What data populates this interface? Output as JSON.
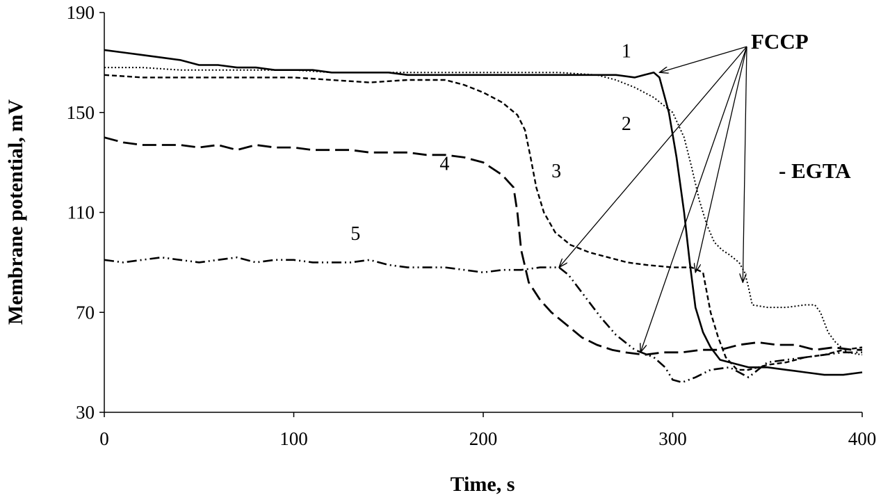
{
  "chart_data": {
    "type": "line",
    "xlabel": "Time, s",
    "ylabel": "Membrane potential, mV",
    "xlim": [
      0,
      400
    ],
    "ylim": [
      30,
      190
    ],
    "xticks": [
      0,
      100,
      200,
      300,
      400
    ],
    "yticks": [
      30,
      70,
      110,
      150,
      190
    ],
    "grid": false,
    "annotations": {
      "fccp": "FCCP",
      "egta": "- EGTA",
      "fccp_targets": [
        {
          "x": 293,
          "y": 166
        },
        {
          "x": 240,
          "y": 88
        },
        {
          "x": 283,
          "y": 54
        },
        {
          "x": 312,
          "y": 86
        },
        {
          "x": 337,
          "y": 82
        }
      ]
    },
    "series": [
      {
        "label": "1",
        "label_at": {
          "x": 273,
          "y": 172
        },
        "style": "solid",
        "points": [
          [
            0,
            175
          ],
          [
            10,
            174
          ],
          [
            20,
            173
          ],
          [
            30,
            172
          ],
          [
            40,
            171
          ],
          [
            50,
            169
          ],
          [
            60,
            169
          ],
          [
            70,
            168
          ],
          [
            80,
            168
          ],
          [
            90,
            167
          ],
          [
            100,
            167
          ],
          [
            110,
            167
          ],
          [
            120,
            166
          ],
          [
            130,
            166
          ],
          [
            140,
            166
          ],
          [
            150,
            166
          ],
          [
            160,
            165
          ],
          [
            170,
            165
          ],
          [
            180,
            165
          ],
          [
            190,
            165
          ],
          [
            200,
            165
          ],
          [
            210,
            165
          ],
          [
            220,
            165
          ],
          [
            230,
            165
          ],
          [
            240,
            165
          ],
          [
            250,
            165
          ],
          [
            260,
            165
          ],
          [
            270,
            165
          ],
          [
            280,
            164
          ],
          [
            285,
            165
          ],
          [
            290,
            166
          ],
          [
            293,
            164
          ],
          [
            298,
            150
          ],
          [
            302,
            132
          ],
          [
            306,
            110
          ],
          [
            309,
            90
          ],
          [
            312,
            72
          ],
          [
            316,
            62
          ],
          [
            320,
            56
          ],
          [
            325,
            51
          ],
          [
            330,
            50
          ],
          [
            340,
            48
          ],
          [
            350,
            48
          ],
          [
            360,
            47
          ],
          [
            370,
            46
          ],
          [
            380,
            45
          ],
          [
            390,
            45
          ],
          [
            400,
            46
          ]
        ]
      },
      {
        "label": "2",
        "label_at": {
          "x": 273,
          "y": 143
        },
        "style": "dotted",
        "points": [
          [
            0,
            168
          ],
          [
            20,
            168
          ],
          [
            40,
            167
          ],
          [
            60,
            167
          ],
          [
            80,
            167
          ],
          [
            100,
            167
          ],
          [
            120,
            166
          ],
          [
            140,
            166
          ],
          [
            160,
            166
          ],
          [
            180,
            166
          ],
          [
            200,
            166
          ],
          [
            220,
            166
          ],
          [
            240,
            166
          ],
          [
            260,
            165
          ],
          [
            270,
            163
          ],
          [
            280,
            160
          ],
          [
            290,
            156
          ],
          [
            300,
            150
          ],
          [
            306,
            140
          ],
          [
            310,
            128
          ],
          [
            314,
            115
          ],
          [
            318,
            105
          ],
          [
            322,
            98
          ],
          [
            326,
            95
          ],
          [
            330,
            93
          ],
          [
            335,
            90
          ],
          [
            338,
            86
          ],
          [
            340,
            80
          ],
          [
            342,
            73
          ],
          [
            350,
            72
          ],
          [
            360,
            72
          ],
          [
            370,
            73
          ],
          [
            375,
            73
          ],
          [
            378,
            70
          ],
          [
            382,
            62
          ],
          [
            386,
            58
          ],
          [
            392,
            54
          ],
          [
            400,
            53
          ]
        ]
      },
      {
        "label": "3",
        "label_at": {
          "x": 236,
          "y": 124
        },
        "style": "dashed",
        "points": [
          [
            0,
            165
          ],
          [
            20,
            164
          ],
          [
            40,
            164
          ],
          [
            60,
            164
          ],
          [
            80,
            164
          ],
          [
            100,
            164
          ],
          [
            120,
            163
          ],
          [
            140,
            162
          ],
          [
            160,
            163
          ],
          [
            180,
            163
          ],
          [
            190,
            161
          ],
          [
            200,
            158
          ],
          [
            210,
            154
          ],
          [
            218,
            149
          ],
          [
            222,
            143
          ],
          [
            225,
            132
          ],
          [
            228,
            120
          ],
          [
            232,
            110
          ],
          [
            238,
            102
          ],
          [
            246,
            97
          ],
          [
            256,
            94
          ],
          [
            266,
            92
          ],
          [
            276,
            90
          ],
          [
            286,
            89
          ],
          [
            300,
            88
          ],
          [
            310,
            88
          ],
          [
            316,
            86
          ],
          [
            320,
            70
          ],
          [
            324,
            60
          ],
          [
            328,
            52
          ],
          [
            334,
            47
          ],
          [
            340,
            47
          ],
          [
            345,
            48
          ],
          [
            350,
            49
          ],
          [
            360,
            50
          ],
          [
            370,
            52
          ],
          [
            380,
            53
          ],
          [
            390,
            55
          ],
          [
            400,
            56
          ]
        ]
      },
      {
        "label": "4",
        "label_at": {
          "x": 177,
          "y": 127
        },
        "style": "longdash",
        "points": [
          [
            0,
            140
          ],
          [
            10,
            138
          ],
          [
            20,
            137
          ],
          [
            30,
            137
          ],
          [
            40,
            137
          ],
          [
            50,
            136
          ],
          [
            60,
            137
          ],
          [
            70,
            135
          ],
          [
            80,
            137
          ],
          [
            90,
            136
          ],
          [
            100,
            136
          ],
          [
            110,
            135
          ],
          [
            120,
            135
          ],
          [
            130,
            135
          ],
          [
            140,
            134
          ],
          [
            150,
            134
          ],
          [
            160,
            134
          ],
          [
            170,
            133
          ],
          [
            180,
            133
          ],
          [
            190,
            132
          ],
          [
            200,
            130
          ],
          [
            210,
            125
          ],
          [
            216,
            120
          ],
          [
            218,
            110
          ],
          [
            220,
            95
          ],
          [
            224,
            82
          ],
          [
            230,
            75
          ],
          [
            236,
            70
          ],
          [
            244,
            65
          ],
          [
            252,
            60
          ],
          [
            260,
            57
          ],
          [
            268,
            55
          ],
          [
            275,
            54
          ],
          [
            285,
            53
          ],
          [
            295,
            54
          ],
          [
            305,
            54
          ],
          [
            315,
            55
          ],
          [
            325,
            55
          ],
          [
            335,
            57
          ],
          [
            345,
            58
          ],
          [
            355,
            57
          ],
          [
            365,
            57
          ],
          [
            375,
            55
          ],
          [
            385,
            56
          ],
          [
            395,
            55
          ],
          [
            400,
            55
          ]
        ]
      },
      {
        "label": "5",
        "label_at": {
          "x": 130,
          "y": 99
        },
        "style": "dashdotdot",
        "points": [
          [
            0,
            91
          ],
          [
            10,
            90
          ],
          [
            20,
            91
          ],
          [
            30,
            92
          ],
          [
            40,
            91
          ],
          [
            50,
            90
          ],
          [
            60,
            91
          ],
          [
            70,
            92
          ],
          [
            80,
            90
          ],
          [
            90,
            91
          ],
          [
            100,
            91
          ],
          [
            110,
            90
          ],
          [
            120,
            90
          ],
          [
            130,
            90
          ],
          [
            140,
            91
          ],
          [
            150,
            89
          ],
          [
            160,
            88
          ],
          [
            170,
            88
          ],
          [
            180,
            88
          ],
          [
            190,
            87
          ],
          [
            200,
            86
          ],
          [
            210,
            87
          ],
          [
            220,
            87
          ],
          [
            230,
            88
          ],
          [
            240,
            88
          ],
          [
            245,
            85
          ],
          [
            250,
            80
          ],
          [
            255,
            75
          ],
          [
            262,
            68
          ],
          [
            270,
            61
          ],
          [
            280,
            55
          ],
          [
            290,
            52
          ],
          [
            296,
            48
          ],
          [
            300,
            43
          ],
          [
            305,
            42
          ],
          [
            312,
            44
          ],
          [
            320,
            47
          ],
          [
            330,
            48
          ],
          [
            335,
            46
          ],
          [
            340,
            44
          ],
          [
            345,
            47
          ],
          [
            350,
            50
          ],
          [
            360,
            51
          ],
          [
            370,
            52
          ],
          [
            380,
            53
          ],
          [
            390,
            54
          ],
          [
            400,
            54
          ]
        ]
      }
    ]
  }
}
